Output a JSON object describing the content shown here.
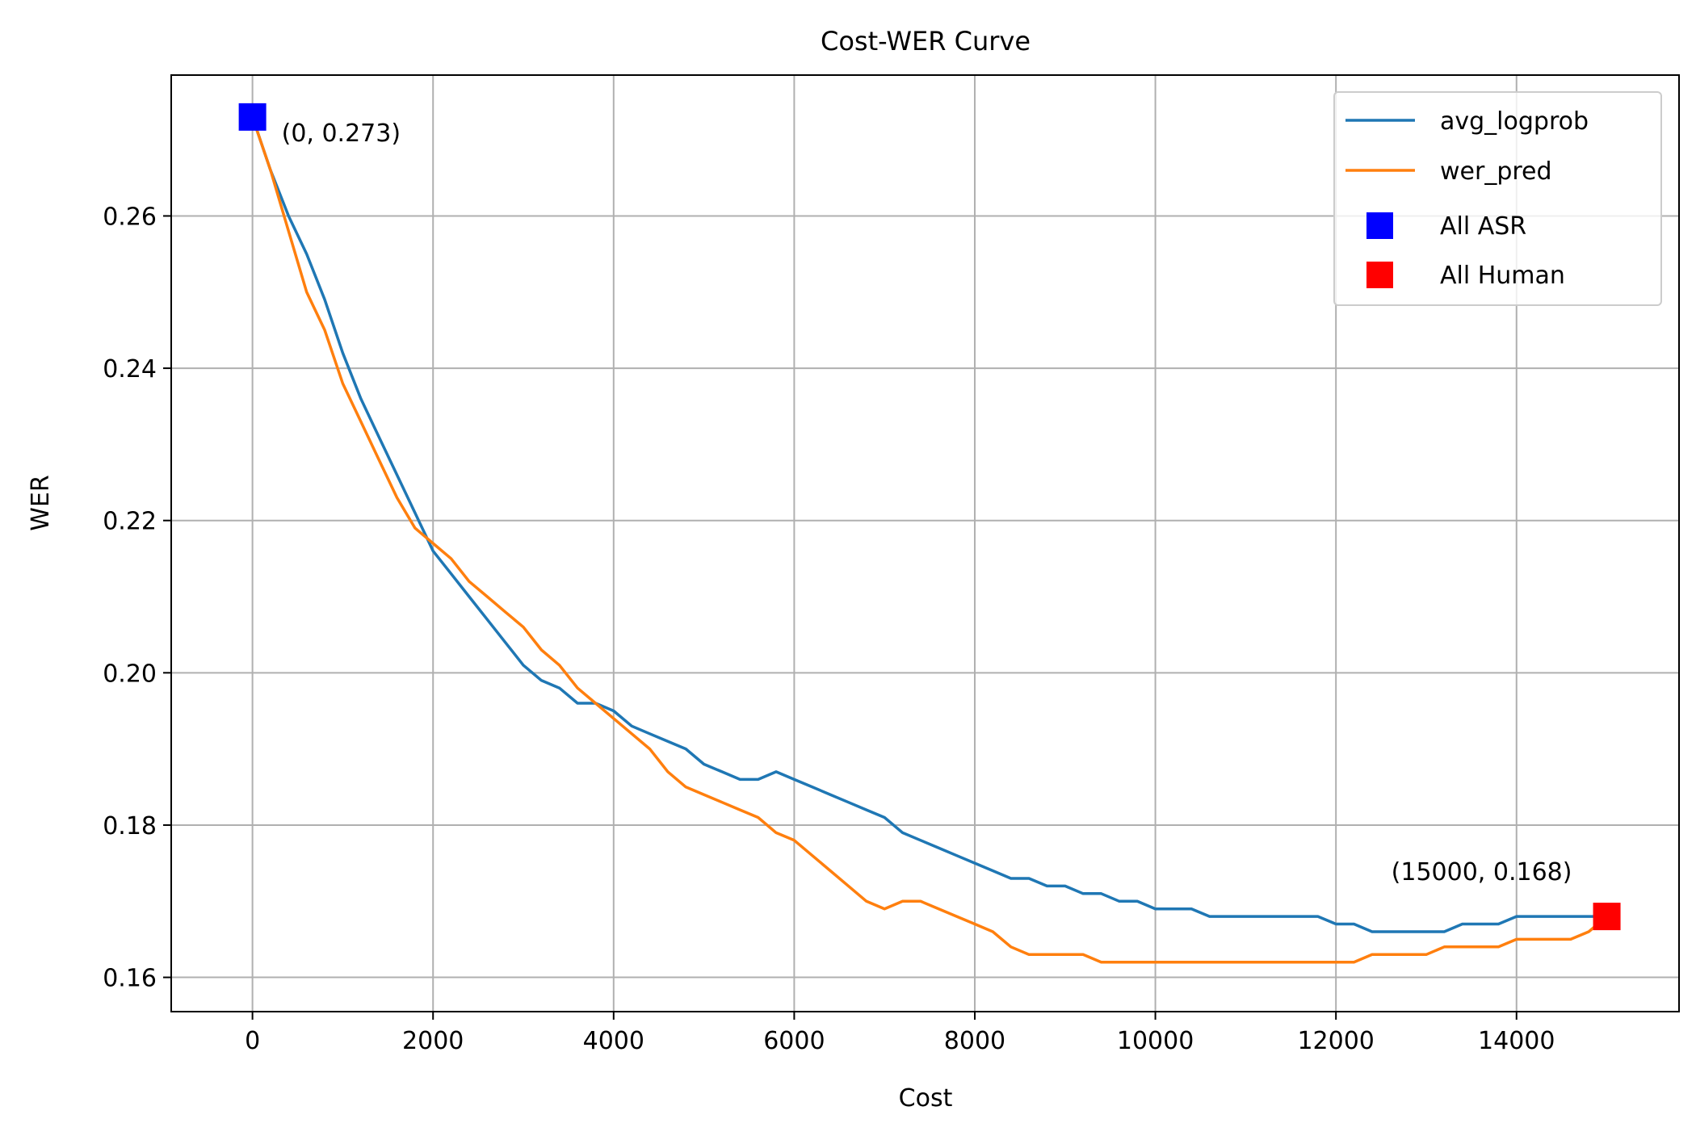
{
  "chart_data": {
    "type": "line",
    "title": "Cost-WER Curve",
    "xlabel": "Cost",
    "ylabel": "WER",
    "xlim": [
      -900,
      15800
    ],
    "ylim": [
      0.1555,
      0.2785
    ],
    "xticks": [
      0,
      2000,
      4000,
      6000,
      8000,
      10000,
      12000,
      14000
    ],
    "xtick_labels": [
      "0",
      "2000",
      "4000",
      "6000",
      "8000",
      "10000",
      "12000",
      "14000"
    ],
    "yticks": [
      0.16,
      0.18,
      0.2,
      0.22,
      0.24,
      0.26
    ],
    "ytick_labels": [
      "0.16",
      "0.18",
      "0.20",
      "0.22",
      "0.24",
      "0.26"
    ],
    "grid": true,
    "legend_position": "upper right",
    "series": [
      {
        "name": "avg_logprob",
        "color": "#1f77b4",
        "x": [
          0,
          200,
          400,
          600,
          800,
          1000,
          1200,
          1400,
          1600,
          1800,
          2000,
          2200,
          2400,
          2600,
          2800,
          3000,
          3200,
          3400,
          3600,
          3800,
          4000,
          4200,
          4400,
          4600,
          4800,
          5000,
          5200,
          5400,
          5600,
          5800,
          6000,
          6200,
          6400,
          6600,
          6800,
          7000,
          7200,
          7400,
          7600,
          7800,
          8000,
          8200,
          8400,
          8600,
          8800,
          9000,
          9200,
          9400,
          9600,
          9800,
          10000,
          10200,
          10400,
          10600,
          10800,
          11000,
          11200,
          11400,
          11600,
          11800,
          12000,
          12200,
          12400,
          12600,
          12800,
          13000,
          13200,
          13400,
          13600,
          13800,
          14000,
          14200,
          14400,
          14600,
          14800,
          15000
        ],
        "y": [
          0.273,
          0.266,
          0.26,
          0.255,
          0.249,
          0.242,
          0.236,
          0.231,
          0.226,
          0.221,
          0.216,
          0.213,
          0.21,
          0.207,
          0.204,
          0.201,
          0.199,
          0.198,
          0.196,
          0.196,
          0.195,
          0.193,
          0.192,
          0.191,
          0.19,
          0.188,
          0.187,
          0.186,
          0.186,
          0.187,
          0.186,
          0.185,
          0.184,
          0.183,
          0.182,
          0.181,
          0.179,
          0.178,
          0.177,
          0.176,
          0.175,
          0.174,
          0.173,
          0.173,
          0.172,
          0.172,
          0.171,
          0.171,
          0.17,
          0.17,
          0.169,
          0.169,
          0.169,
          0.168,
          0.168,
          0.168,
          0.168,
          0.168,
          0.168,
          0.168,
          0.167,
          0.167,
          0.166,
          0.166,
          0.166,
          0.166,
          0.166,
          0.167,
          0.167,
          0.167,
          0.168,
          0.168,
          0.168,
          0.168,
          0.168,
          0.168
        ]
      },
      {
        "name": "wer_pred",
        "color": "#ff7f0e",
        "x": [
          0,
          200,
          400,
          600,
          800,
          1000,
          1200,
          1400,
          1600,
          1800,
          2000,
          2200,
          2400,
          2600,
          2800,
          3000,
          3200,
          3400,
          3600,
          3800,
          4000,
          4200,
          4400,
          4600,
          4800,
          5000,
          5200,
          5400,
          5600,
          5800,
          6000,
          6200,
          6400,
          6600,
          6800,
          7000,
          7200,
          7400,
          7600,
          7800,
          8000,
          8200,
          8400,
          8600,
          8800,
          9000,
          9200,
          9400,
          9600,
          9800,
          10000,
          10200,
          10400,
          10600,
          10800,
          11000,
          11200,
          11400,
          11600,
          11800,
          12000,
          12200,
          12400,
          12600,
          12800,
          13000,
          13200,
          13400,
          13600,
          13800,
          14000,
          14200,
          14400,
          14600,
          14800,
          15000
        ],
        "y": [
          0.273,
          0.266,
          0.258,
          0.25,
          0.245,
          0.238,
          0.233,
          0.228,
          0.223,
          0.219,
          0.217,
          0.215,
          0.212,
          0.21,
          0.208,
          0.206,
          0.203,
          0.201,
          0.198,
          0.196,
          0.194,
          0.192,
          0.19,
          0.187,
          0.185,
          0.184,
          0.183,
          0.182,
          0.181,
          0.179,
          0.178,
          0.176,
          0.174,
          0.172,
          0.17,
          0.169,
          0.17,
          0.17,
          0.169,
          0.168,
          0.167,
          0.166,
          0.164,
          0.163,
          0.163,
          0.163,
          0.163,
          0.162,
          0.162,
          0.162,
          0.162,
          0.162,
          0.162,
          0.162,
          0.162,
          0.162,
          0.162,
          0.162,
          0.162,
          0.162,
          0.162,
          0.162,
          0.163,
          0.163,
          0.163,
          0.163,
          0.164,
          0.164,
          0.164,
          0.164,
          0.165,
          0.165,
          0.165,
          0.165,
          0.166,
          0.168
        ]
      }
    ],
    "markers": [
      {
        "name": "All ASR",
        "x": 0,
        "y": 0.273,
        "color": "#0000ff",
        "annotation": "(0, 0.273)"
      },
      {
        "name": "All Human",
        "x": 15000,
        "y": 0.168,
        "color": "#ff0000",
        "annotation": "(15000, 0.168)"
      }
    ]
  }
}
